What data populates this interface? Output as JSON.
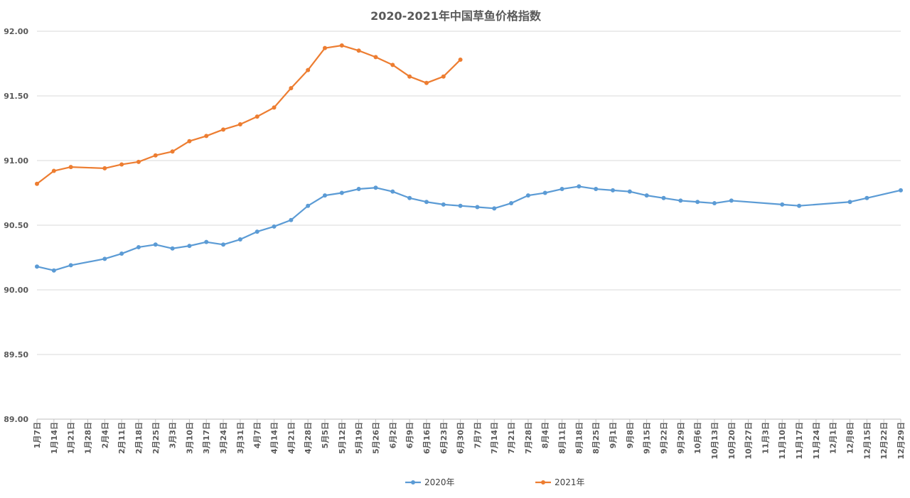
{
  "chart_data": {
    "type": "line",
    "title": "2020-2021年中国草鱼价格指数",
    "xlabel": "",
    "ylabel": "",
    "ylim": [
      89.0,
      92.0
    ],
    "yticks": [
      "89.00",
      "89.50",
      "90.00",
      "90.50",
      "91.00",
      "91.50",
      "92.00"
    ],
    "grid": true,
    "legend_position": "bottom",
    "categories": [
      "1月7日",
      "1月14日",
      "1月21日",
      "1月28日",
      "2月4日",
      "2月11日",
      "2月18日",
      "2月25日",
      "3月3日",
      "3月10日",
      "3月17日",
      "3月24日",
      "3月31日",
      "4月7日",
      "4月14日",
      "4月21日",
      "4月28日",
      "5月5日",
      "5月12日",
      "5月19日",
      "5月26日",
      "6月2日",
      "6月9日",
      "6月16日",
      "6月23日",
      "6月30日",
      "7月7日",
      "7月14日",
      "7月21日",
      "7月28日",
      "8月4日",
      "8月11日",
      "8月18日",
      "8月25日",
      "9月1日",
      "9月8日",
      "9月15日",
      "9月22日",
      "9月29日",
      "10月6日",
      "10月13日",
      "10月20日",
      "10月27日",
      "11月3日",
      "11月10日",
      "11月17日",
      "11月24日",
      "12月1日",
      "12月8日",
      "12月15日",
      "12月22日",
      "12月29日"
    ],
    "series": [
      {
        "name": "2020年",
        "color": "#5b9bd5",
        "values": [
          90.18,
          90.15,
          90.19,
          null,
          90.24,
          90.28,
          90.33,
          90.35,
          90.32,
          90.34,
          90.37,
          90.35,
          90.39,
          90.45,
          90.49,
          90.54,
          90.65,
          90.73,
          90.75,
          90.78,
          90.79,
          90.76,
          90.71,
          90.68,
          90.66,
          90.65,
          90.64,
          90.63,
          90.67,
          90.73,
          90.75,
          90.78,
          90.8,
          90.78,
          90.77,
          90.76,
          90.73,
          90.71,
          90.69,
          90.68,
          90.67,
          90.69,
          null,
          null,
          90.66,
          90.65,
          null,
          null,
          90.68,
          90.71,
          null,
          90.77
        ]
      },
      {
        "name": "2021年",
        "color": "#ed7d31",
        "values": [
          90.82,
          90.92,
          90.95,
          null,
          90.94,
          90.97,
          90.99,
          91.04,
          91.07,
          91.15,
          91.19,
          91.24,
          91.28,
          91.34,
          91.41,
          91.56,
          91.7,
          91.87,
          91.89,
          91.85,
          91.8,
          91.74,
          91.65,
          91.6,
          91.65,
          91.78,
          null,
          null,
          null,
          null,
          null,
          null,
          null,
          null,
          null,
          null,
          null,
          null,
          null,
          null,
          null,
          null,
          null,
          null,
          null,
          null,
          null,
          null,
          null,
          null,
          null,
          null
        ]
      }
    ]
  }
}
